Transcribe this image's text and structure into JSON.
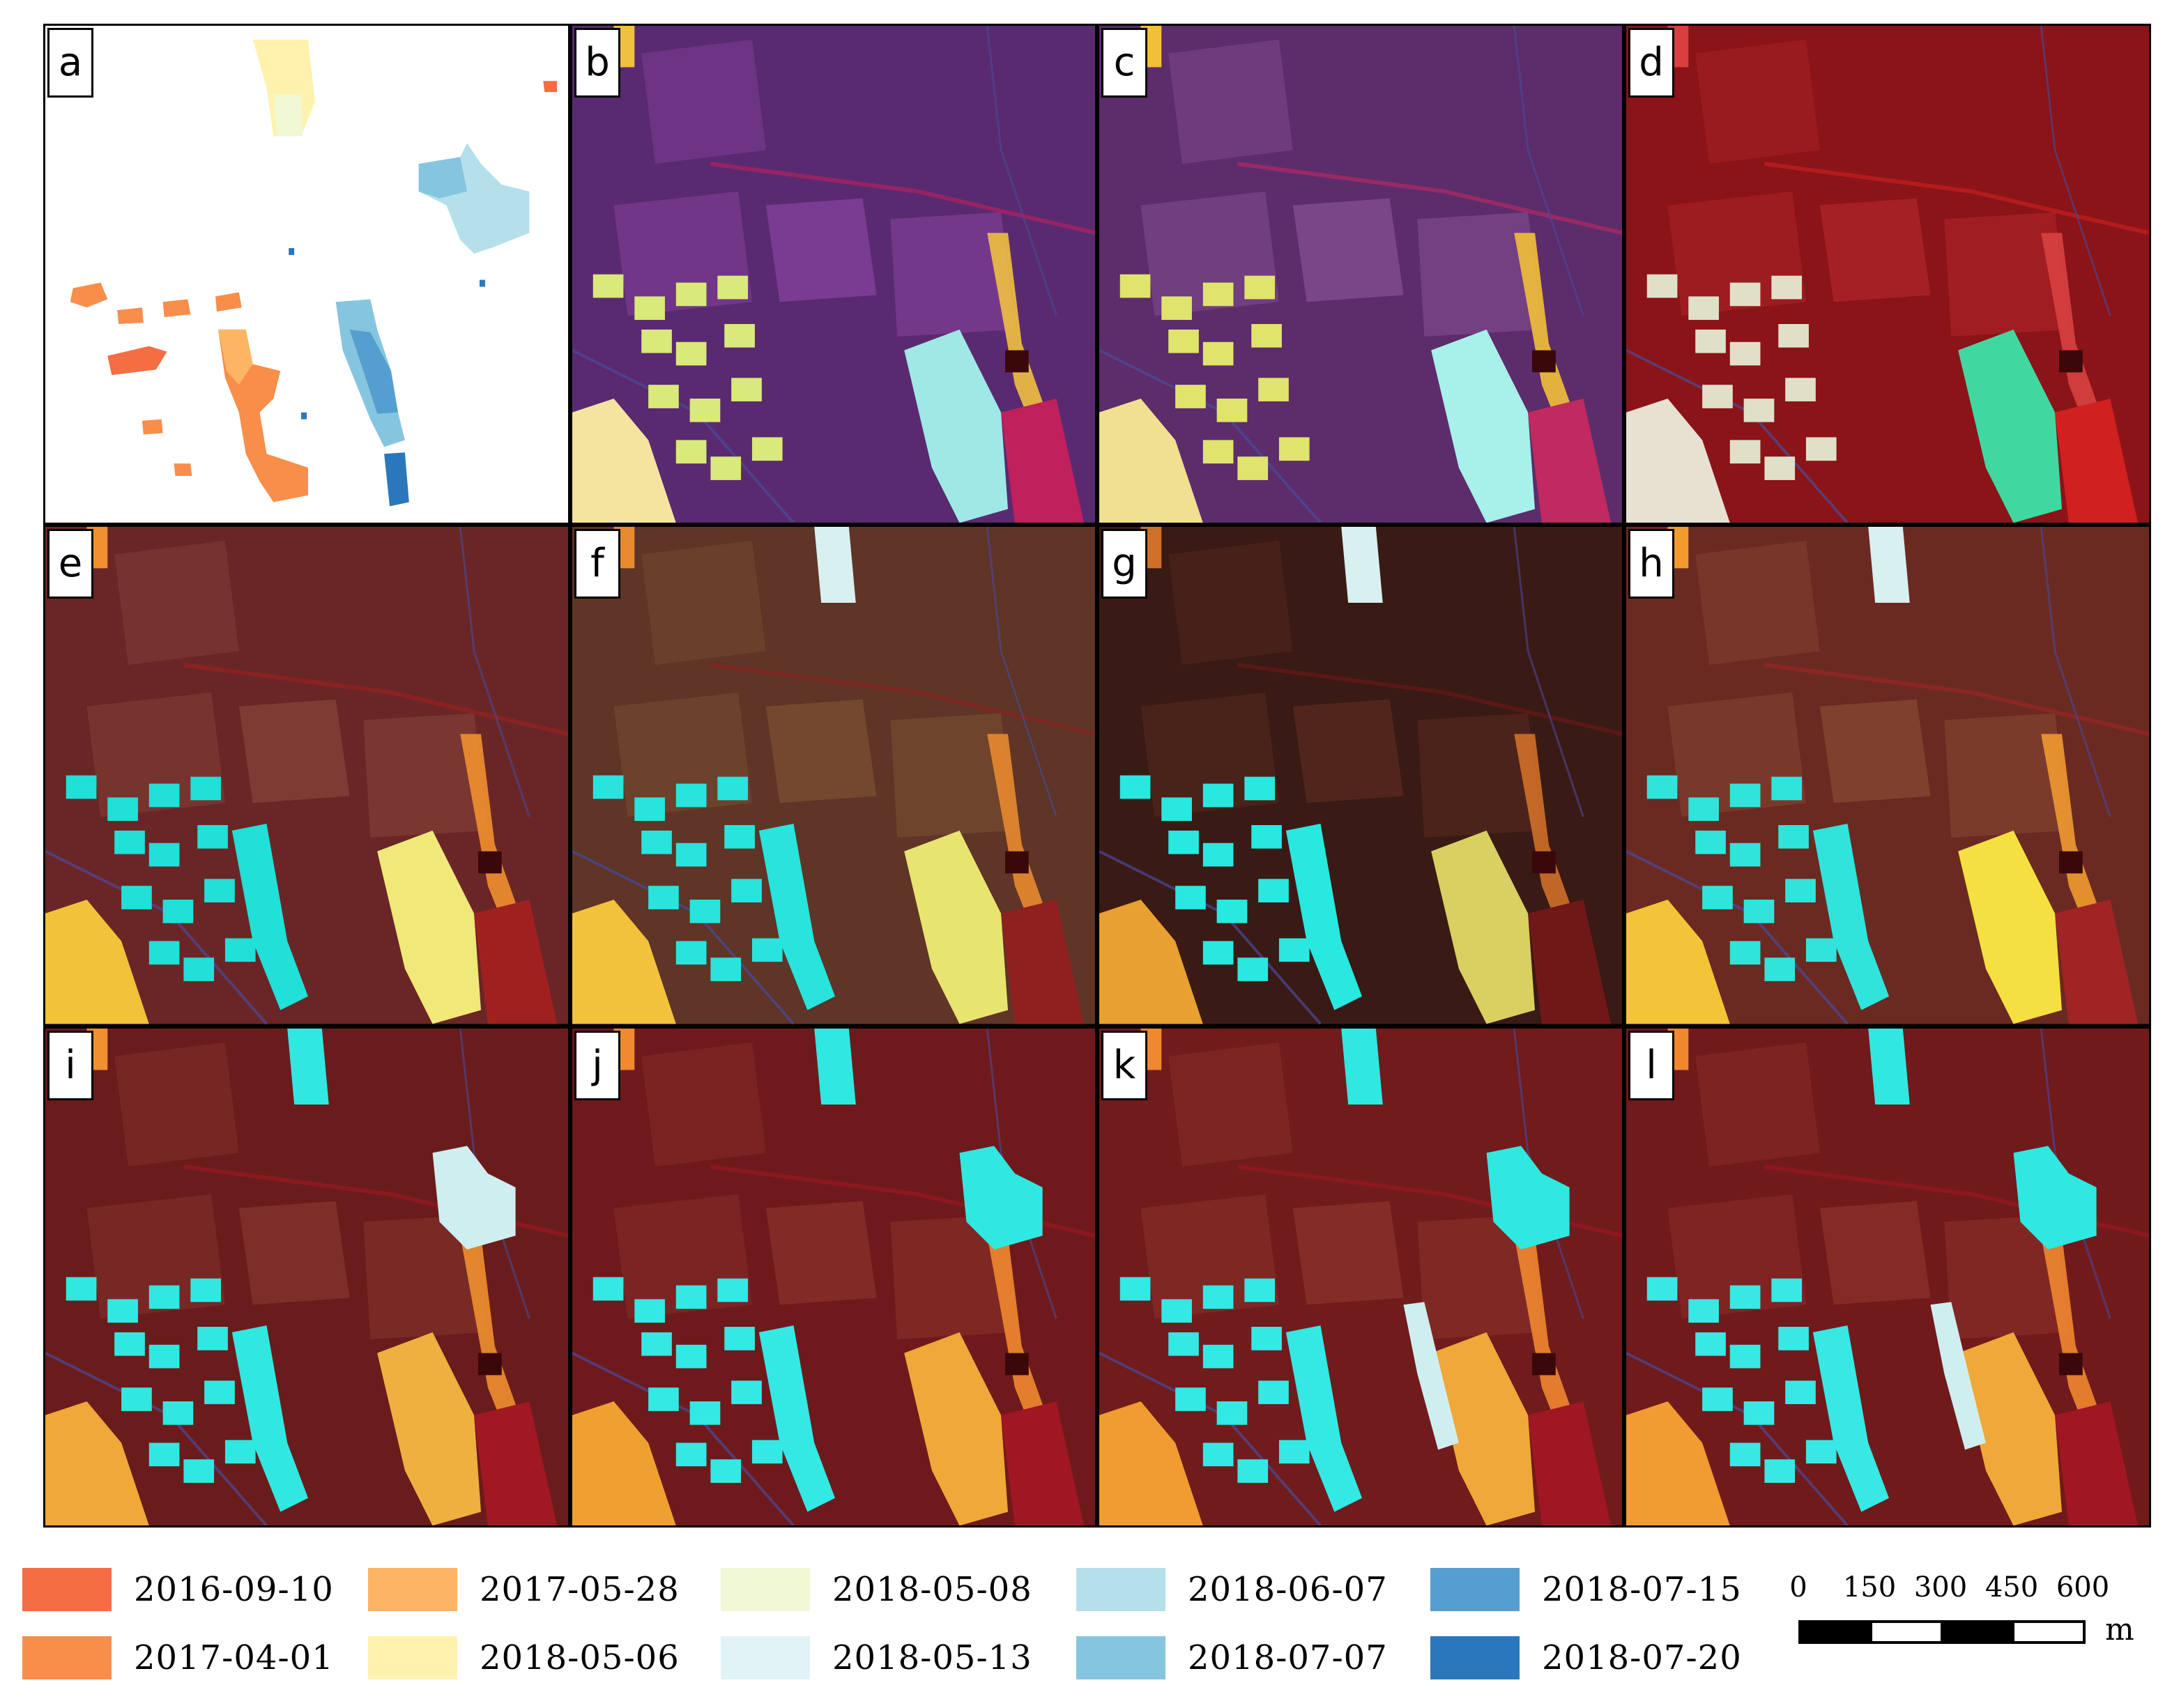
{
  "panels": [
    {
      "letter": "a",
      "kind": "map"
    },
    {
      "letter": "b",
      "kind": "imagery",
      "base": "#5a2a70",
      "tint": "#7a3c92",
      "patch": "#f4e4a0",
      "block": "#d9e97a",
      "field": "#9fe8e6",
      "strip": "#f0c040",
      "accent": "#c0205c"
    },
    {
      "letter": "c",
      "kind": "imagery",
      "base": "#5d2c6b",
      "tint": "#7b4688",
      "patch": "#f0e090",
      "block": "#dfe46d",
      "field": "#a8f0ea",
      "strip": "#f2c038",
      "accent": "#c02a60"
    },
    {
      "letter": "d",
      "kind": "imagery",
      "base": "#8a1418",
      "tint": "#a52024",
      "patch": "#e8e0d0",
      "block": "#e0e0c8",
      "field": "#40d8a0",
      "strip": "#d84040",
      "accent": "#d02020"
    },
    {
      "letter": "e",
      "kind": "imagery",
      "base": "#6a2626",
      "tint": "#7e3b33",
      "patch": "#f1c23a",
      "block": "#20e0d8",
      "field": "#f0e878",
      "strip": "#f09030",
      "accent": "#a02020"
    },
    {
      "letter": "f",
      "kind": "imagery",
      "base": "#5e3526",
      "tint": "#73482f",
      "patch": "#f2c23c",
      "block": "#28e4dc",
      "field": "#e8e470",
      "strip": "#e88a30",
      "accent": "#902020"
    },
    {
      "letter": "g",
      "kind": "imagery",
      "base": "#3a1a14",
      "tint": "#50261c",
      "patch": "#e8a030",
      "block": "#28e8e0",
      "field": "#d8d060",
      "strip": "#d07028",
      "accent": "#701818"
    },
    {
      "letter": "h",
      "kind": "imagery",
      "base": "#6a2a22",
      "tint": "#80402e",
      "patch": "#f4c438",
      "block": "#30e4dc",
      "field": "#f4e040",
      "strip": "#f09a30",
      "accent": "#a02424"
    },
    {
      "letter": "i",
      "kind": "imagery",
      "base": "#6a1c1c",
      "tint": "#7e2e28",
      "patch": "#f0a838",
      "block": "#30e8e0",
      "field": "#f0b040",
      "strip": "#f09030",
      "accent": "#a01822"
    },
    {
      "letter": "j",
      "kind": "imagery",
      "base": "#6e1a1c",
      "tint": "#822a26",
      "patch": "#f0a030",
      "block": "#34e8e4",
      "field": "#f0a838",
      "strip": "#f08a30",
      "accent": "#a01622"
    },
    {
      "letter": "k",
      "kind": "imagery",
      "base": "#701c1c",
      "tint": "#842c26",
      "patch": "#f09c30",
      "block": "#34e8e4",
      "field": "#f0a838",
      "strip": "#f08830",
      "accent": "#a01622"
    },
    {
      "letter": "l",
      "kind": "imagery",
      "base": "#701a1c",
      "tint": "#862a26",
      "patch": "#f09c30",
      "block": "#38e8e4",
      "field": "#f0a838",
      "strip": "#f08830",
      "accent": "#a01622"
    }
  ],
  "legend": [
    {
      "label": "2016-09-10",
      "color": "#f46d43"
    },
    {
      "label": "2017-04-01",
      "color": "#f88e4a"
    },
    {
      "label": "2017-05-28",
      "color": "#fdb563"
    },
    {
      "label": "2018-05-06",
      "color": "#fff2ae"
    },
    {
      "label": "2018-05-08",
      "color": "#f1f8d6"
    },
    {
      "label": "2018-05-13",
      "color": "#e2f3f7"
    },
    {
      "label": "2018-06-07",
      "color": "#b4e0ec"
    },
    {
      "label": "2018-07-07",
      "color": "#86c5df"
    },
    {
      "label": "2018-07-15",
      "color": "#549fcf"
    },
    {
      "label": "2018-07-20",
      "color": "#2a78bb"
    }
  ],
  "scale_bar": {
    "ticks": [
      "0",
      "150",
      "300",
      "450",
      "600"
    ],
    "unit": "m"
  }
}
